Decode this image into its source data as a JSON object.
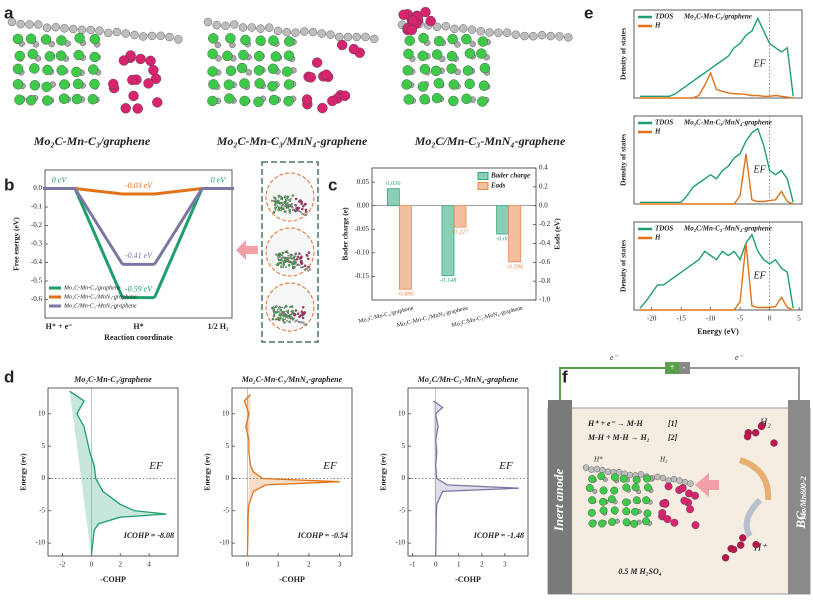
{
  "panel_labels": [
    "a",
    "b",
    "c",
    "d",
    "e",
    "f"
  ],
  "structures": {
    "captions": [
      "Mo₂C-Mn-C₃/graphene",
      "Mo₂C-Mn-C₃/MnN₄-graphene",
      "Mo₂C/Mn-C₃-MnN₄-graphene"
    ]
  },
  "chart_data": [
    {
      "type": "line",
      "y_label": "Free energy (eV)",
      "x_label": "Reaction coordinate",
      "categories": [
        "H⁺ + e⁻",
        "H*",
        "1/2 H₂"
      ],
      "ylim": [
        -0.7,
        0.1
      ],
      "yticks": [
        {
          "value": 0,
          "label": "0.0"
        },
        -0.1,
        -0.2,
        -0.3,
        -0.4,
        -0.5,
        -0.6
      ],
      "legend": "lower left",
      "series": [
        {
          "name": "Mo₂C-Mn-C₃/graphene",
          "color": "#1f9e6e",
          "values": [
            0,
            -0.59,
            0
          ],
          "value_labels": [
            "0 eV",
            "-0.59 eV",
            "0 eV"
          ]
        },
        {
          "name": "Mo₂C-Mn-C₃/MnN₄-graphene",
          "color": "#e0731a",
          "values": [
            0,
            -0.03,
            0
          ],
          "value_labels": [
            null,
            "-0.03 eV",
            null
          ]
        },
        {
          "name": "Mo₂C/Mn-C₃-MnN₄-graphene",
          "color": "#7b77a3",
          "values": [
            0,
            -0.41,
            0
          ],
          "value_labels": [
            null,
            "-0.41 eV",
            null
          ]
        }
      ]
    },
    {
      "type": "bar",
      "y_label": "Bader charge (e)",
      "y2_label": "Eads (eV)",
      "categories": [
        "Mo₂C-Mn-C₃/graphene",
        "Mo₂C-Mn-C₃/MnN₄-graphene",
        "Mo₂C/Mn-C₃-MnN₄-graphene"
      ],
      "ylim": [
        -0.2,
        0.08
      ],
      "yticks": [
        0.05,
        {
          "value": 0,
          "label": "0.00"
        },
        -0.05,
        {
          "value": -0.1,
          "label": "-0.10"
        },
        -0.15
      ],
      "y2lim": [
        -1,
        0.4
      ],
      "y2ticks": [
        0.4,
        0.2,
        {
          "value": 0,
          "label": "0.0"
        },
        -0.2,
        -0.4,
        -0.6,
        -0.8,
        {
          "value": -1,
          "label": "-1.0"
        }
      ],
      "legend": "upper right",
      "series": [
        {
          "name": "Bader charge",
          "color": "#2aa87a",
          "values": [
            0.036,
            -0.148,
            -0.06
          ]
        },
        {
          "name": "Eads",
          "color": "#e98a4e",
          "axis": "y2",
          "values": [
            -0.886,
            -0.227,
            -0.596
          ]
        }
      ]
    },
    {
      "type": "area",
      "title": "Mo₂C-Mn-C₃/graphene",
      "x_label": "-COHP",
      "y_label": "Energy (ev)",
      "xlim": [
        -3,
        6
      ],
      "xticks": [
        -2,
        0,
        2,
        4
      ],
      "ylim": [
        -12,
        14
      ],
      "yticks": [
        10,
        5,
        0,
        -5,
        -10
      ],
      "color": "#1f9e6e",
      "energy": [
        13.5,
        12,
        10,
        8,
        6,
        4,
        2,
        0,
        -2,
        -4,
        -5,
        -5.5,
        -6,
        -7,
        -8,
        -10,
        -12
      ],
      "values": [
        -1.5,
        -0.5,
        -1,
        -0.5,
        -0.3,
        -0.1,
        0.2,
        0.3,
        0.8,
        2,
        3,
        5.2,
        2,
        0.5,
        0.2,
        0.1,
        0
      ],
      "annotations": [
        "ICOHP = -8.08",
        "EF"
      ]
    },
    {
      "type": "area",
      "title": "Mo₂C-Mn-C₃/MnN₄-graphene",
      "x_label": "-COHP",
      "y_label": "Energy (ev)",
      "xlim": [
        -0.5,
        3.4
      ],
      "xticks": [
        0,
        1,
        2,
        3
      ],
      "ylim": [
        -12,
        14
      ],
      "yticks": [
        10,
        5,
        0,
        -5,
        -10
      ],
      "color": "#e0731a",
      "energy": [
        13,
        12,
        10,
        8,
        6,
        4,
        2,
        1,
        0,
        -0.5,
        -1,
        -2,
        -4,
        -6,
        -8,
        -10,
        -12
      ],
      "values": [
        0.1,
        -0.1,
        0.05,
        -0.05,
        0.05,
        0.05,
        0.1,
        0.2,
        0.5,
        3,
        0.6,
        0.2,
        0.05,
        0.02,
        0.02,
        0.01,
        0
      ],
      "annotations": [
        "ICOHP = -0.54",
        "EF"
      ]
    },
    {
      "type": "area",
      "title": "Mo₂C/Mn-C₃-MnN₄-graphene",
      "x_label": "-COHP",
      "y_label": "Energy (ev)",
      "xlim": [
        -1.2,
        4
      ],
      "xticks": [
        -1,
        0,
        1,
        2,
        3
      ],
      "ylim": [
        -12,
        14
      ],
      "yticks": [
        10,
        5,
        0,
        -5,
        -10
      ],
      "color": "#7b77a3",
      "energy": [
        12,
        11,
        10,
        8,
        6,
        4,
        2,
        0,
        -1,
        -1.5,
        -2,
        -4,
        -6,
        -8,
        -10,
        -12
      ],
      "values": [
        -0.1,
        0.3,
        0,
        0.1,
        0,
        0.05,
        0,
        0.05,
        0.5,
        3.6,
        0.3,
        0.05,
        0.02,
        0.02,
        0.01,
        0
      ],
      "annotations": [
        "ICOHP = -1.48",
        "EF"
      ]
    },
    {
      "type": "line",
      "title": "Mo₂C-Mn-C₃/graphene",
      "y_label": "Density of states",
      "xlim": [
        -23,
        5.5
      ],
      "ylim": [
        0,
        10.5
      ],
      "x": [
        -22,
        -21,
        -20,
        -19,
        -18,
        -17,
        -16,
        -15,
        -14,
        -13,
        -12,
        -11,
        -10,
        -9,
        -8,
        -7,
        -6,
        -5,
        -4,
        -3,
        -2,
        -1,
        0,
        1,
        2,
        3,
        4
      ],
      "series": [
        {
          "name": "TDOS",
          "color": "#1f9e6e",
          "values": [
            0.2,
            0.2,
            0.2,
            0.2,
            0.2,
            0.2,
            0.5,
            1,
            1.5,
            2,
            2.5,
            3,
            3.5,
            4,
            4.5,
            5,
            6,
            6.5,
            7.5,
            8,
            9.5,
            8,
            6.5,
            6,
            5.5,
            6,
            0.2
          ]
        },
        {
          "name": "H",
          "color": "#e0731a",
          "values": [
            0,
            0,
            0,
            0,
            0,
            0,
            0,
            0,
            0,
            0,
            0.3,
            1.5,
            3,
            1,
            0.8,
            0.6,
            0.5,
            0.5,
            0.4,
            0.3,
            0.3,
            0.2,
            0.2,
            0.3,
            0.2,
            0.1,
            0
          ]
        }
      ],
      "annotations": [
        "EF"
      ]
    },
    {
      "type": "line",
      "title": "Mo₂C-Mn-C₃/MnN₄-graphene",
      "y_label": "Density of states",
      "xlim": [
        -23,
        5.5
      ],
      "ylim": [
        0,
        10.5
      ],
      "x": [
        -22,
        -21,
        -20,
        -19,
        -18,
        -17,
        -16,
        -15,
        -14,
        -13,
        -12,
        -11,
        -10,
        -9,
        -8,
        -7,
        -6,
        -5,
        -4,
        -3,
        -2,
        -1,
        0,
        1,
        2,
        3,
        4
      ],
      "series": [
        {
          "name": "TDOS",
          "color": "#1f9e6e",
          "values": [
            0.2,
            0.2,
            0.2,
            0.2,
            0.2,
            0.2,
            0.2,
            0.2,
            1,
            2,
            2.5,
            3,
            3.5,
            3,
            4,
            4.5,
            5.5,
            6,
            7.5,
            8.5,
            9,
            7,
            4,
            3.5,
            4,
            3,
            0.2
          ]
        },
        {
          "name": "H",
          "color": "#e0731a",
          "values": [
            0,
            0,
            0,
            0,
            0,
            0,
            0,
            0,
            0,
            0,
            0,
            0,
            0,
            0,
            0,
            0,
            0,
            1,
            6,
            0.5,
            0.3,
            0.3,
            0.4,
            0.5,
            1.5,
            0.3,
            0
          ]
        }
      ],
      "annotations": [
        "EF"
      ]
    },
    {
      "type": "line",
      "title": "Mo₂C/Mn-C₃-MnN₄-graphene",
      "y_label": "Density of states",
      "x_label": "Energy (eV)",
      "xlim": [
        -23,
        5.5
      ],
      "xticks": [
        -20,
        -15,
        -10,
        -5,
        0,
        5
      ],
      "ylim": [
        0,
        10.5
      ],
      "x": [
        -22,
        -21,
        -20,
        -19,
        -18,
        -17,
        -16,
        -15,
        -14,
        -13,
        -12,
        -11,
        -10,
        -9,
        -8,
        -7,
        -6,
        -5,
        -4,
        -3,
        -2,
        -1,
        0,
        1,
        2,
        3,
        4
      ],
      "series": [
        {
          "name": "TDOS",
          "color": "#1f9e6e",
          "values": [
            0.2,
            1,
            2,
            3,
            3,
            3.5,
            4,
            4.5,
            5,
            5.5,
            6,
            7,
            6.5,
            6,
            7,
            6.5,
            7,
            6,
            8,
            9,
            7,
            6,
            5.5,
            6,
            5,
            4.5,
            0.2
          ]
        },
        {
          "name": "H",
          "color": "#e0731a",
          "values": [
            0,
            0,
            0,
            0,
            0,
            0,
            0,
            0,
            0,
            0,
            0,
            0,
            0,
            0,
            0,
            0,
            0,
            1,
            8,
            0.5,
            0.3,
            0.3,
            0.3,
            0.4,
            1.5,
            0.3,
            0
          ]
        }
      ],
      "annotations": [
        "EF"
      ]
    }
  ],
  "schematic": {
    "electron_left": "e⁻",
    "electron_right": "e⁻",
    "battery_plus": "+",
    "battery_minus": "-",
    "anode": "Inert anode",
    "cathode": "BC",
    "cathode_sub": "Mo/Mn800-2",
    "reaction_1": "H⁺ + e⁻ → M-H",
    "reaction_1_tag": "[1]",
    "reaction_2": "M-H + M-H → H₂",
    "reaction_2_tag": "[2]",
    "h2_product": "H₂",
    "proton": "H⁺",
    "adsorbed_h": "H*",
    "h2_small": "H₂",
    "electrolyte": "0.5 M H₂SO₄"
  }
}
